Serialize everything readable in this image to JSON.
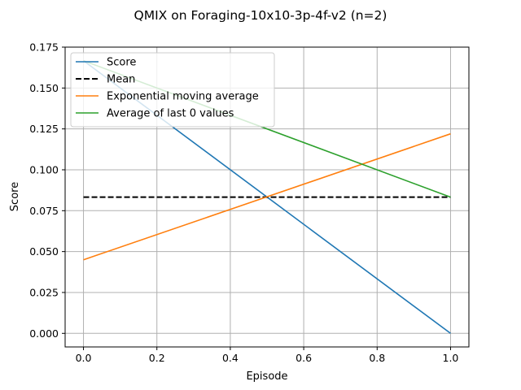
{
  "chart_data": {
    "type": "line",
    "title": "QMIX on Foraging-10x10-3p-4f-v2 (n=2)",
    "xlabel": "Episode",
    "ylabel": "Score",
    "xlim": [
      -0.05,
      1.05
    ],
    "ylim": [
      -0.0083,
      0.175
    ],
    "xticks": [
      0.0,
      0.2,
      0.4,
      0.6,
      0.8,
      1.0
    ],
    "xtick_labels": [
      "0.0",
      "0.2",
      "0.4",
      "0.6",
      "0.8",
      "1.0"
    ],
    "yticks": [
      0.0,
      0.025,
      0.05,
      0.075,
      0.1,
      0.125,
      0.15,
      0.175
    ],
    "ytick_labels": [
      "0.000",
      "0.025",
      "0.050",
      "0.075",
      "0.100",
      "0.125",
      "0.150",
      "0.175"
    ],
    "grid": true,
    "legend_position": "top-left",
    "series": [
      {
        "name": "Score",
        "x": [
          0.0,
          1.0
        ],
        "y": [
          0.1667,
          0.0
        ],
        "color": "#1f77b4",
        "dash": "solid"
      },
      {
        "name": "Mean",
        "x": [
          0.0,
          1.0
        ],
        "y": [
          0.0833,
          0.0833
        ],
        "color": "#000000",
        "dash": "dashed"
      },
      {
        "name": "Exponential moving average",
        "x": [
          0.0,
          1.0
        ],
        "y": [
          0.045,
          0.122
        ],
        "color": "#ff7f0e",
        "dash": "solid"
      },
      {
        "name": "Average of last 0 values",
        "x": [
          0.0,
          1.0
        ],
        "y": [
          0.1667,
          0.0833
        ],
        "color": "#2ca02c",
        "dash": "solid"
      }
    ]
  }
}
